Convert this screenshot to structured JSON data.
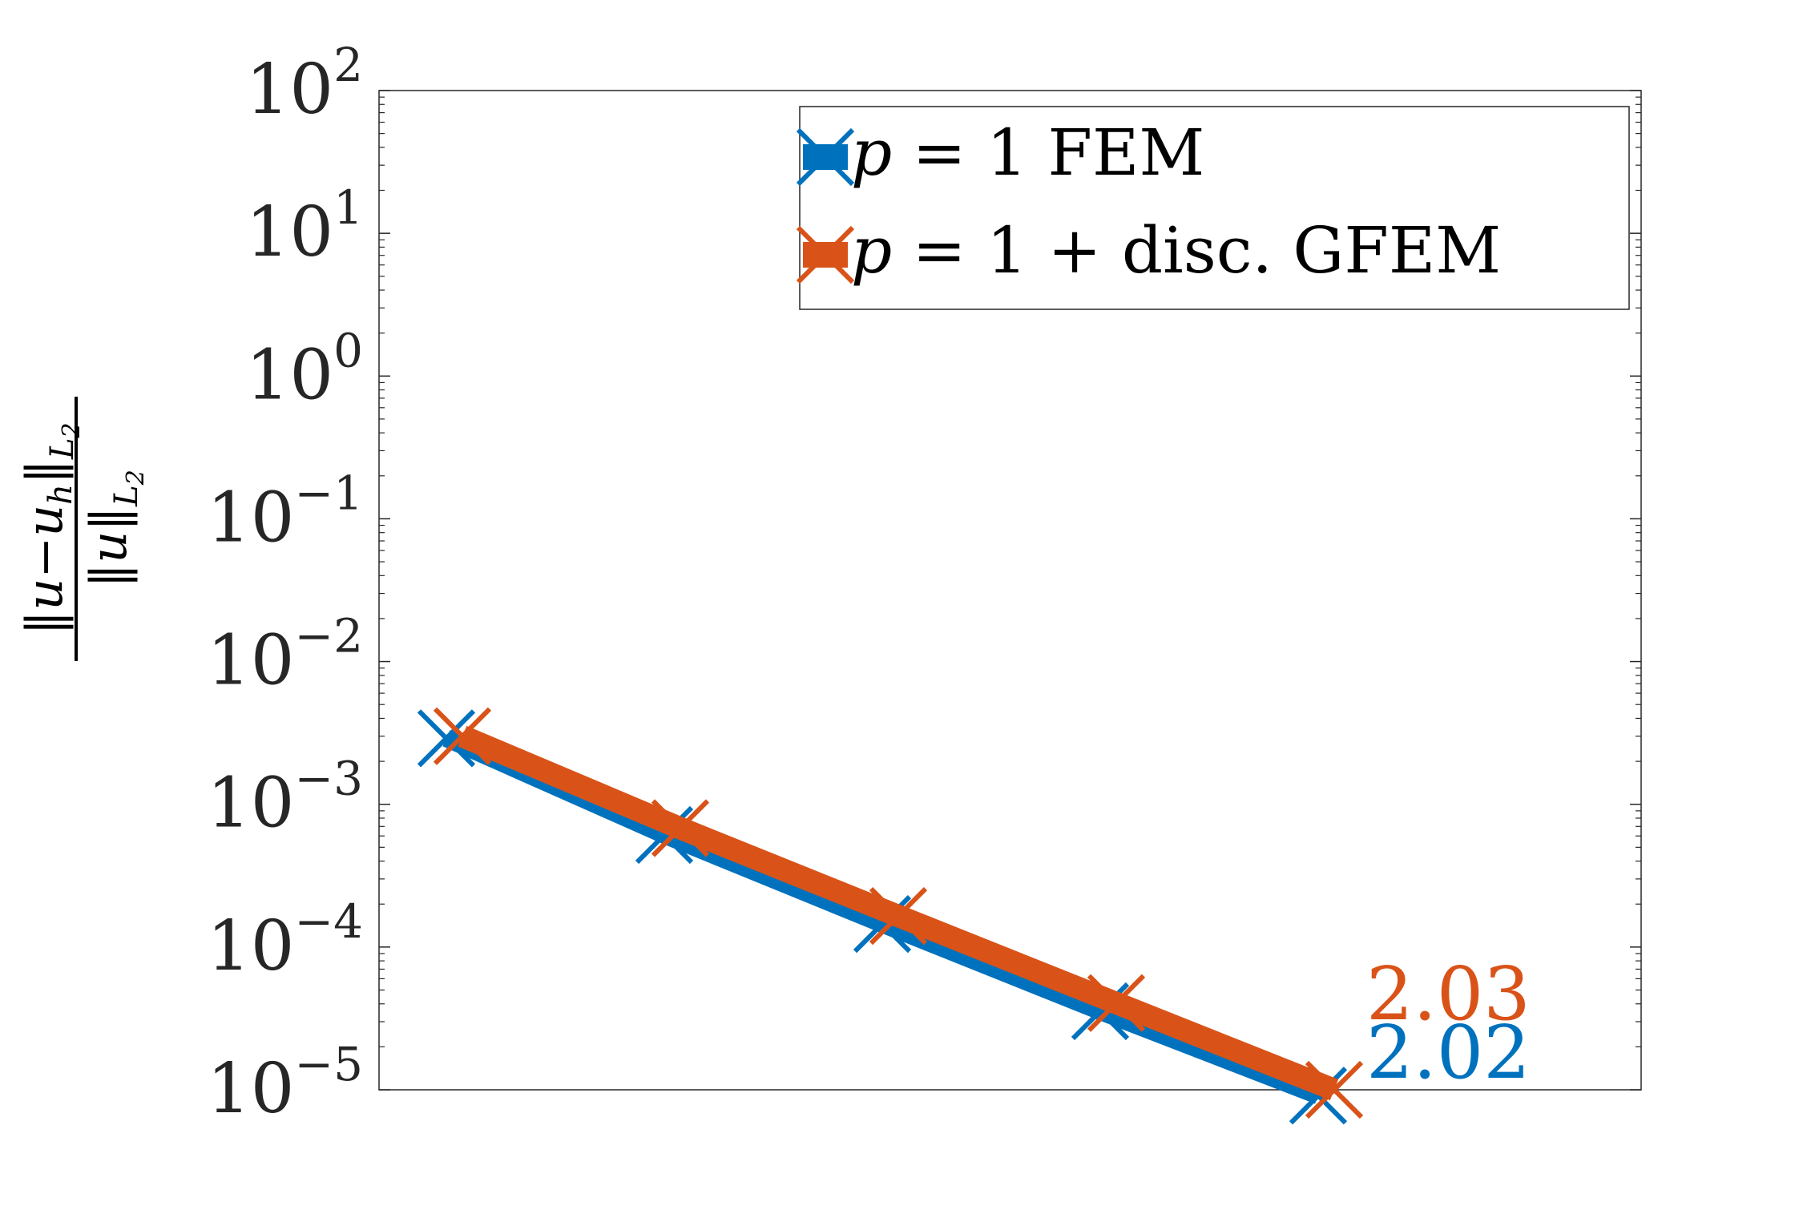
{
  "chart_data": {
    "type": "line",
    "yscale": "log",
    "ylim": [
      1e-05,
      100
    ],
    "xscale": "log",
    "x_ticks_shown": false,
    "grid": false,
    "legend_position": "top-right",
    "ylabel": "‖u−u_h‖_{L2} / ‖u‖_{L2}",
    "ylabel_parts": {
      "numerator": "‖u−u",
      "numerator_sub": "h",
      "numerator_tail": "‖",
      "numerator_norm_sub": "L",
      "numerator_norm_sub2": "2",
      "denominator": "‖u‖",
      "denominator_sub": "L",
      "denominator_sub2": "2"
    },
    "y_ticks": [
      {
        "base": "10",
        "exp": "2",
        "value": 100
      },
      {
        "base": "10",
        "exp": "1",
        "value": 10
      },
      {
        "base": "10",
        "exp": "0",
        "value": 1
      },
      {
        "base": "10",
        "exp": "−1",
        "value": 0.1
      },
      {
        "base": "10",
        "exp": "−2",
        "value": 0.01
      },
      {
        "base": "10",
        "exp": "−3",
        "value": 0.001
      },
      {
        "base": "10",
        "exp": "−4",
        "value": 0.0001
      },
      {
        "base": "10",
        "exp": "−5",
        "value": 1e-05
      }
    ],
    "series": [
      {
        "name": "p = 1 FEM",
        "color": "#0072BD",
        "marker": "x",
        "x": [
          1,
          2,
          4,
          8,
          16
        ],
        "y": [
          0.0029,
          0.00061,
          0.000145,
          3.55e-05,
          9.1e-06
        ],
        "rate_label": "2.02"
      },
      {
        "name": "p = 1 + disc. GFEM",
        "color": "#D95319",
        "marker": "x",
        "x": [
          1,
          2,
          4,
          8,
          16
        ],
        "y": [
          0.003,
          0.00068,
          0.000165,
          4.05e-05,
          1e-05
        ],
        "rate_label": "2.03"
      }
    ],
    "legend": [
      {
        "label_italic": "p",
        "label_rest": " = 1 FEM"
      },
      {
        "label_italic": "p",
        "label_rest": " = 1 + disc. GFEM"
      }
    ]
  },
  "colors": {
    "axis": "#262626",
    "series1": "#0072BD",
    "series2": "#D95319"
  }
}
